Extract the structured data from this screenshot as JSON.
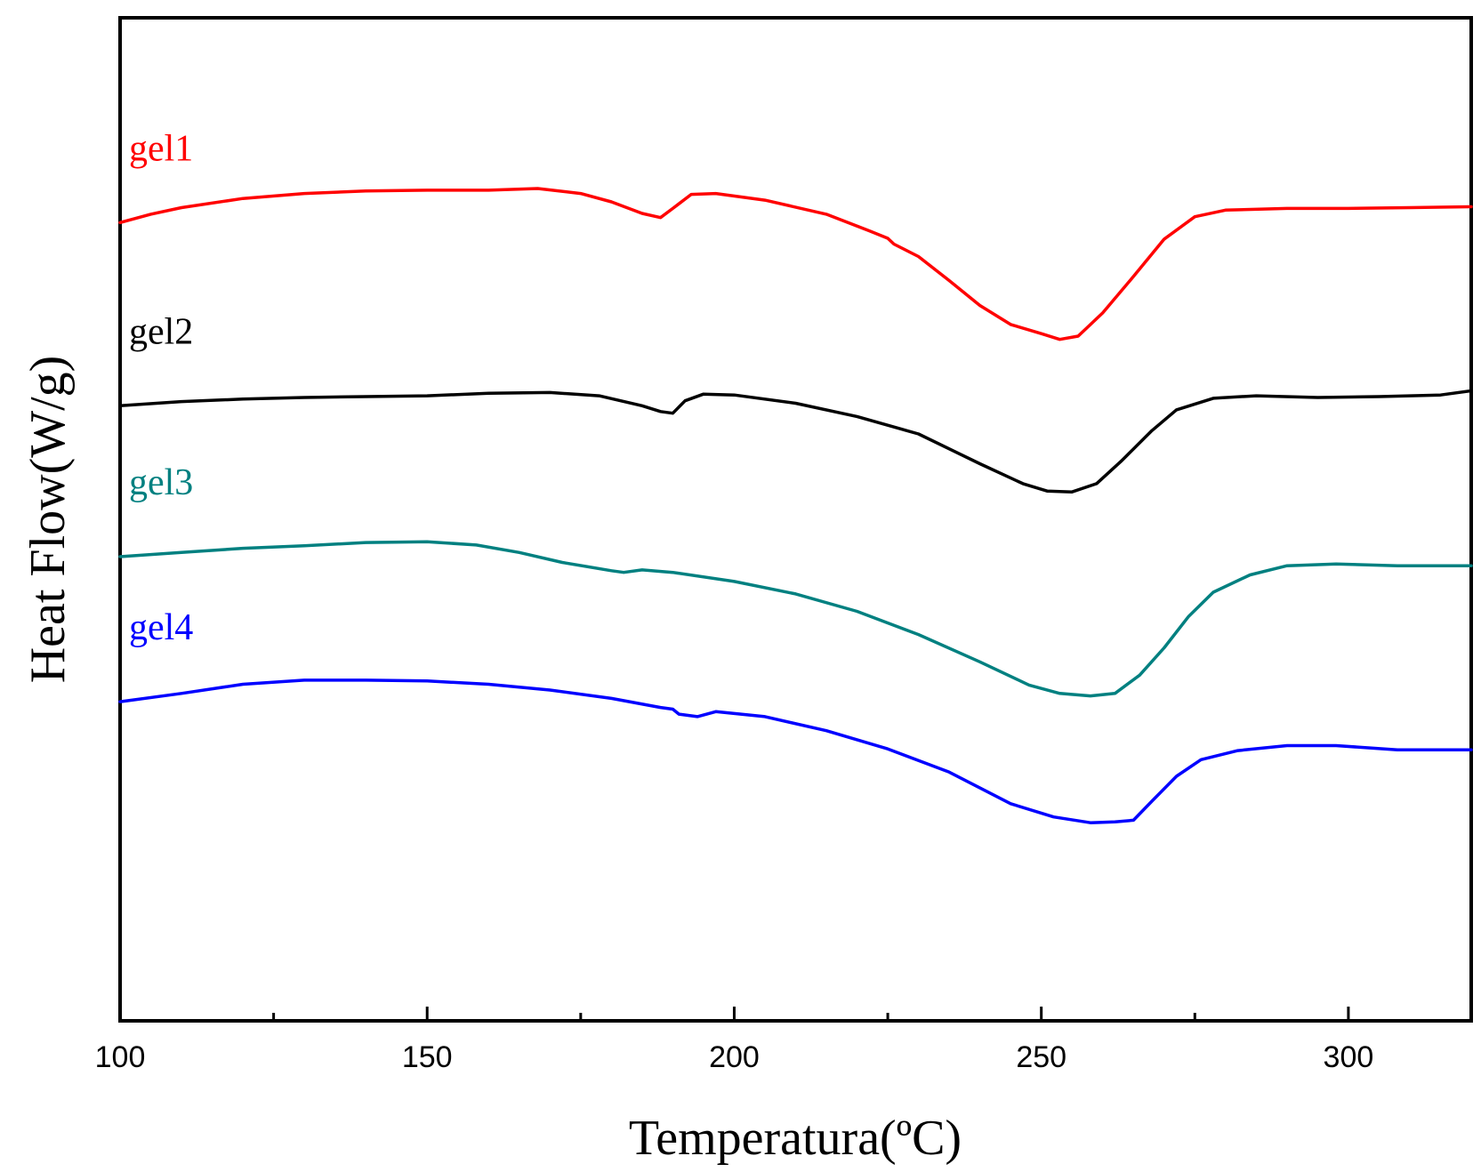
{
  "chart_data": {
    "type": "line",
    "title": "",
    "xlabel": "Temperatura(ºC)",
    "ylabel": "Heat Flow(W/g)",
    "xlim": [
      100,
      320
    ],
    "x_ticks": [
      100,
      150,
      200,
      250,
      300
    ],
    "x_minor_ticks": [
      125,
      175,
      225,
      275
    ],
    "y_ticks_shown": false,
    "y_units_note": "",
    "grid": false,
    "legend": "",
    "series": [
      {
        "name": "gel1",
        "color": "#ff0000",
        "points": [
          [
            100,
            1.13
          ],
          [
            105,
            1.23
          ],
          [
            110,
            1.31
          ],
          [
            120,
            1.42
          ],
          [
            130,
            1.48
          ],
          [
            140,
            1.51
          ],
          [
            150,
            1.52
          ],
          [
            160,
            1.52
          ],
          [
            168,
            1.54
          ],
          [
            175,
            1.48
          ],
          [
            180,
            1.38
          ],
          [
            185,
            1.24
          ],
          [
            188,
            1.19
          ],
          [
            190,
            1.3
          ],
          [
            193,
            1.47
          ],
          [
            197,
            1.48
          ],
          [
            205,
            1.4
          ],
          [
            215,
            1.23
          ],
          [
            222,
            1.03
          ],
          [
            225,
            0.94
          ],
          [
            226,
            0.87
          ],
          [
            230,
            0.72
          ],
          [
            235,
            0.43
          ],
          [
            240,
            0.13
          ],
          [
            245,
            -0.1
          ],
          [
            250,
            -0.21
          ],
          [
            253,
            -0.28
          ],
          [
            256,
            -0.24
          ],
          [
            260,
            0.04
          ],
          [
            265,
            0.48
          ],
          [
            270,
            0.93
          ],
          [
            275,
            1.2
          ],
          [
            280,
            1.28
          ],
          [
            290,
            1.3
          ],
          [
            300,
            1.3
          ],
          [
            310,
            1.31
          ],
          [
            320,
            1.32
          ]
        ]
      },
      {
        "name": "gel2",
        "color": "#000000",
        "points": [
          [
            100,
            -1.08
          ],
          [
            110,
            -1.03
          ],
          [
            120,
            -1.0
          ],
          [
            130,
            -0.98
          ],
          [
            140,
            -0.97
          ],
          [
            150,
            -0.96
          ],
          [
            160,
            -0.93
          ],
          [
            170,
            -0.92
          ],
          [
            178,
            -0.96
          ],
          [
            185,
            -1.08
          ],
          [
            188,
            -1.15
          ],
          [
            190,
            -1.17
          ],
          [
            192,
            -1.02
          ],
          [
            195,
            -0.94
          ],
          [
            200,
            -0.95
          ],
          [
            210,
            -1.05
          ],
          [
            220,
            -1.21
          ],
          [
            230,
            -1.42
          ],
          [
            240,
            -1.78
          ],
          [
            247,
            -2.02
          ],
          [
            251,
            -2.11
          ],
          [
            255,
            -2.12
          ],
          [
            259,
            -2.02
          ],
          [
            263,
            -1.75
          ],
          [
            268,
            -1.38
          ],
          [
            272,
            -1.13
          ],
          [
            278,
            -0.99
          ],
          [
            285,
            -0.96
          ],
          [
            295,
            -0.98
          ],
          [
            305,
            -0.97
          ],
          [
            315,
            -0.95
          ],
          [
            320,
            -0.9
          ]
        ]
      },
      {
        "name": "gel3",
        "color": "#008080",
        "points": [
          [
            100,
            -2.9
          ],
          [
            110,
            -2.85
          ],
          [
            120,
            -2.8
          ],
          [
            130,
            -2.77
          ],
          [
            140,
            -2.73
          ],
          [
            150,
            -2.72
          ],
          [
            158,
            -2.76
          ],
          [
            165,
            -2.85
          ],
          [
            172,
            -2.97
          ],
          [
            180,
            -3.07
          ],
          [
            182,
            -3.09
          ],
          [
            185,
            -3.06
          ],
          [
            190,
            -3.09
          ],
          [
            200,
            -3.2
          ],
          [
            210,
            -3.35
          ],
          [
            220,
            -3.56
          ],
          [
            230,
            -3.84
          ],
          [
            240,
            -4.17
          ],
          [
            248,
            -4.45
          ],
          [
            253,
            -4.55
          ],
          [
            258,
            -4.58
          ],
          [
            262,
            -4.55
          ],
          [
            266,
            -4.33
          ],
          [
            270,
            -4.0
          ],
          [
            274,
            -3.62
          ],
          [
            278,
            -3.33
          ],
          [
            284,
            -3.12
          ],
          [
            290,
            -3.01
          ],
          [
            298,
            -2.99
          ],
          [
            308,
            -3.01
          ],
          [
            320,
            -3.01
          ]
        ]
      },
      {
        "name": "gel4",
        "color": "#0000ff",
        "points": [
          [
            100,
            -4.65
          ],
          [
            110,
            -4.55
          ],
          [
            120,
            -4.44
          ],
          [
            130,
            -4.39
          ],
          [
            140,
            -4.39
          ],
          [
            150,
            -4.4
          ],
          [
            160,
            -4.44
          ],
          [
            170,
            -4.51
          ],
          [
            180,
            -4.61
          ],
          [
            188,
            -4.72
          ],
          [
            190,
            -4.74
          ],
          [
            191,
            -4.8
          ],
          [
            194,
            -4.83
          ],
          [
            197,
            -4.77
          ],
          [
            205,
            -4.83
          ],
          [
            215,
            -5.0
          ],
          [
            225,
            -5.22
          ],
          [
            235,
            -5.5
          ],
          [
            245,
            -5.88
          ],
          [
            252,
            -6.04
          ],
          [
            258,
            -6.11
          ],
          [
            262,
            -6.1
          ],
          [
            265,
            -6.08
          ],
          [
            268,
            -5.85
          ],
          [
            272,
            -5.55
          ],
          [
            276,
            -5.35
          ],
          [
            282,
            -5.24
          ],
          [
            290,
            -5.18
          ],
          [
            298,
            -5.18
          ],
          [
            308,
            -5.23
          ],
          [
            320,
            -5.23
          ]
        ]
      }
    ],
    "ylim": [
      -8.5,
      3.6
    ]
  }
}
